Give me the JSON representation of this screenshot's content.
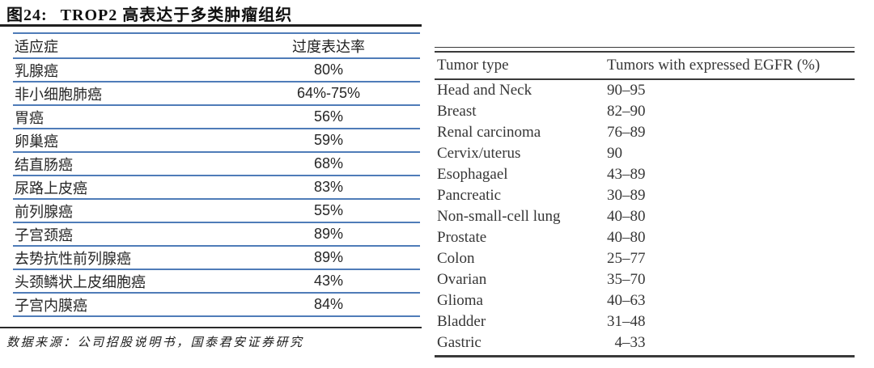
{
  "figure": {
    "label": "图24:",
    "title": "TROP2 高表达于多类肿瘤组织",
    "source": "数据来源：公司招股说明书，国泰君安证券研究",
    "accent_line_color": "#4f7cb8",
    "rule_color": "#1f1f1f"
  },
  "left_table": {
    "headers": {
      "indication": "适应症",
      "rate": "过度表达率"
    },
    "rows": [
      {
        "indication": "乳腺癌",
        "rate": "80%"
      },
      {
        "indication": "非小细胞肺癌",
        "rate": "64%-75%"
      },
      {
        "indication": "胃癌",
        "rate": "56%"
      },
      {
        "indication": "卵巢癌",
        "rate": "59%"
      },
      {
        "indication": "结直肠癌",
        "rate": "68%"
      },
      {
        "indication": "尿路上皮癌",
        "rate": "83%"
      },
      {
        "indication": "前列腺癌",
        "rate": "55%"
      },
      {
        "indication": "子宫颈癌",
        "rate": "89%"
      },
      {
        "indication": "去势抗性前列腺癌",
        "rate": "89%"
      },
      {
        "indication": "头颈鳞状上皮细胞癌",
        "rate": "43%"
      },
      {
        "indication": "子宫内膜癌",
        "rate": "84%"
      }
    ]
  },
  "right_table": {
    "headers": {
      "tumor_type": "Tumor type",
      "expression": "Tumors with expressed EGFR (%)"
    },
    "rows": [
      {
        "tumor_type": "Head and Neck",
        "range": "90–95"
      },
      {
        "tumor_type": "Breast",
        "range": "82–90"
      },
      {
        "tumor_type": "Renal carcinoma",
        "range": "76–89"
      },
      {
        "tumor_type": "Cervix/uterus",
        "range": "90"
      },
      {
        "tumor_type": "Esophagael",
        "range": "43–89"
      },
      {
        "tumor_type": "Pancreatic",
        "range": "30–89"
      },
      {
        "tumor_type": "Non-small-cell lung",
        "range": "40–80"
      },
      {
        "tumor_type": "Prostate",
        "range": "40–80"
      },
      {
        "tumor_type": "Colon",
        "range": "25–77"
      },
      {
        "tumor_type": "Ovarian",
        "range": "35–70"
      },
      {
        "tumor_type": "Glioma",
        "range": "40–63"
      },
      {
        "tumor_type": "Bladder",
        "range": "31–48"
      },
      {
        "tumor_type": "Gastric",
        "range": " 4–33"
      }
    ]
  }
}
